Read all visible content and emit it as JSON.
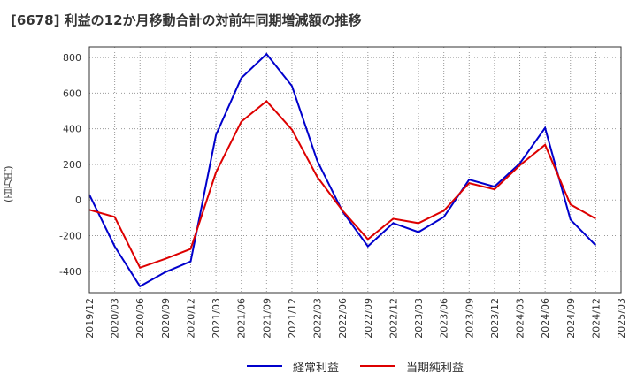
{
  "chart_data": {
    "type": "line",
    "title": "[6678]  利益の12か月移動合計の対前年同期増減額の推移",
    "ylabel": "(百万円)",
    "xlabel": "",
    "ylim": [
      -520,
      860
    ],
    "yticks": [
      800,
      600,
      400,
      200,
      0,
      -200,
      -400
    ],
    "grid": true,
    "legend_position": "bottom-center",
    "categories": [
      "2019/12",
      "2020/03",
      "2020/06",
      "2020/09",
      "2020/12",
      "2021/03",
      "2021/06",
      "2021/09",
      "2021/12",
      "2022/03",
      "2022/06",
      "2022/09",
      "2022/12",
      "2023/03",
      "2023/06",
      "2023/09",
      "2023/12",
      "2024/03",
      "2024/06",
      "2024/09",
      "2024/12",
      "2025/03"
    ],
    "series": [
      {
        "name": "経常利益",
        "color": "#0000cc",
        "values": [
          30,
          -260,
          -485,
          -405,
          -345,
          365,
          685,
          820,
          640,
          220,
          -65,
          -260,
          -130,
          -180,
          -95,
          115,
          75,
          205,
          405,
          -110,
          -255,
          null
        ]
      },
      {
        "name": "当期純利益",
        "color": "#dd0000",
        "values": [
          -55,
          -95,
          -380,
          -330,
          -275,
          155,
          440,
          555,
          395,
          130,
          -60,
          -220,
          -105,
          -130,
          -60,
          95,
          60,
          195,
          310,
          -25,
          -105,
          null
        ]
      }
    ]
  }
}
